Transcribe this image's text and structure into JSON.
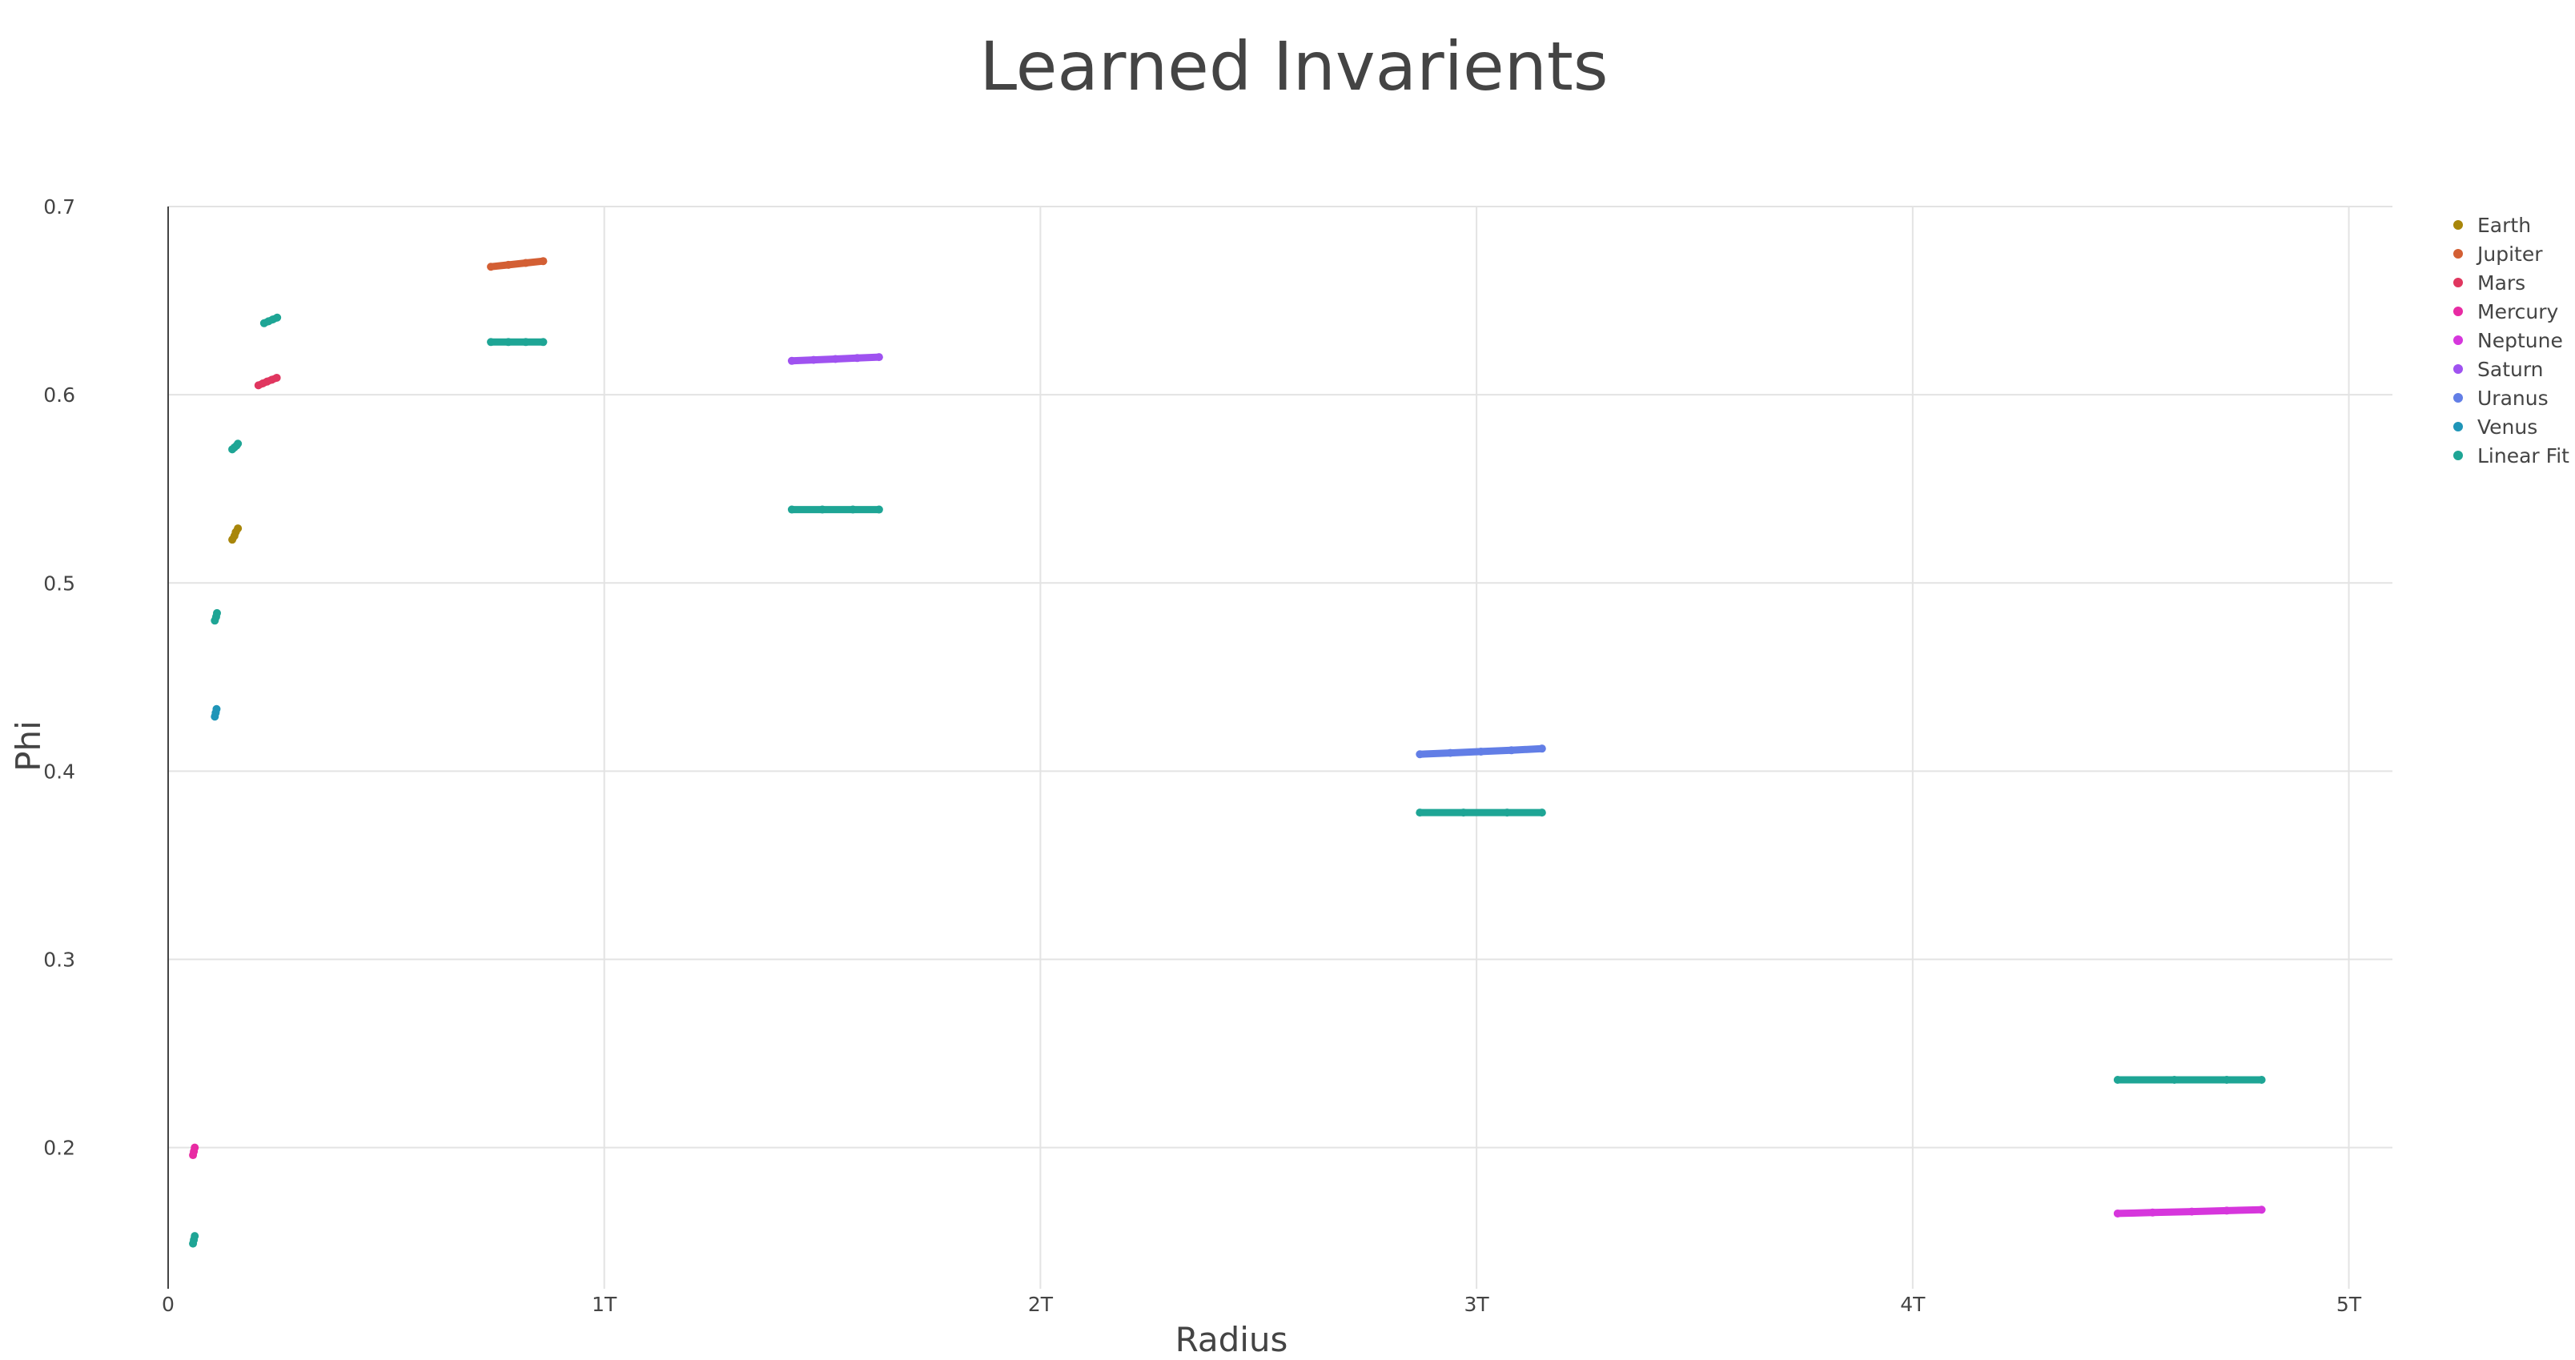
{
  "chart_data": {
    "type": "scatter",
    "title": "Learned Invarients",
    "xlabel": "Radius",
    "ylabel": "Phi",
    "xlim": [
      0,
      5100000000000.0
    ],
    "ylim": [
      0.125,
      0.7
    ],
    "x_ticks": [
      {
        "value": 0,
        "label": "0"
      },
      {
        "value": 1000000000000.0,
        "label": "1T"
      },
      {
        "value": 2000000000000.0,
        "label": "2T"
      },
      {
        "value": 3000000000000.0,
        "label": "3T"
      },
      {
        "value": 4000000000000.0,
        "label": "4T"
      },
      {
        "value": 5000000000000.0,
        "label": "5T"
      }
    ],
    "y_ticks": [
      {
        "value": 0.2,
        "label": "0.2"
      },
      {
        "value": 0.3,
        "label": "0.3"
      },
      {
        "value": 0.4,
        "label": "0.4"
      },
      {
        "value": 0.5,
        "label": "0.5"
      },
      {
        "value": 0.6,
        "label": "0.6"
      },
      {
        "value": 0.7,
        "label": "0.7"
      }
    ],
    "grid": true,
    "legend_position": "top-right",
    "series": [
      {
        "name": "Earth",
        "color": "#a8860a",
        "segments": [
          {
            "x": [
              147000000000.0,
              152000000000.0,
              155000000000.0,
              160000000000.0
            ],
            "y": [
              0.523,
              0.525,
              0.527,
              0.529
            ]
          }
        ]
      },
      {
        "name": "Jupiter",
        "color": "#d35f34",
        "segments": [
          {
            "x": [
              740000000000.0,
              780000000000.0,
              820000000000.0,
              860000000000.0
            ],
            "y": [
              0.668,
              0.669,
              0.67,
              0.671
            ]
          }
        ]
      },
      {
        "name": "Mars",
        "color": "#e0365f",
        "segments": [
          {
            "x": [
              207000000000.0,
              217000000000.0,
              227000000000.0,
              238000000000.0,
              249000000000.0
            ],
            "y": [
              0.605,
              0.606,
              0.607,
              0.608,
              0.609
            ]
          }
        ]
      },
      {
        "name": "Mercury",
        "color": "#e82ba3",
        "segments": [
          {
            "x": [
              57000000000.0,
              59000000000.0,
              61000000000.0
            ],
            "y": [
              0.196,
              0.198,
              0.2
            ]
          }
        ]
      },
      {
        "name": "Neptune",
        "color": "#d636dc",
        "segments": [
          {
            "x": [
              4470000000000.0,
              4550000000000.0,
              4640000000000.0,
              4720000000000.0,
              4800000000000.0
            ],
            "y": [
              0.165,
              0.1655,
              0.166,
              0.1665,
              0.167
            ]
          }
        ]
      },
      {
        "name": "Saturn",
        "color": "#9f52f0",
        "segments": [
          {
            "x": [
              1430000000000.0,
              1480000000000.0,
              1530000000000.0,
              1580000000000.0,
              1630000000000.0
            ],
            "y": [
              0.618,
              0.6185,
              0.619,
              0.6195,
              0.62
            ]
          }
        ]
      },
      {
        "name": "Uranus",
        "color": "#627ee6",
        "segments": [
          {
            "x": [
              2870000000000.0,
              2940000000000.0,
              3010000000000.0,
              3080000000000.0,
              3150000000000.0
            ],
            "y": [
              0.409,
              0.4097,
              0.4104,
              0.4111,
              0.412
            ]
          }
        ]
      },
      {
        "name": "Venus",
        "color": "#1f95b8",
        "segments": [
          {
            "x": [
              107000000000.0,
              109000000000.0,
              111000000000.0
            ],
            "y": [
              0.429,
              0.431,
              0.433
            ]
          }
        ]
      },
      {
        "name": "Linear Fit",
        "color": "#1ea595",
        "segments": [
          {
            "x": [
              147000000000.0,
              152000000000.0,
              157000000000.0,
              160000000000.0
            ],
            "y": [
              0.571,
              0.572,
              0.573,
              0.574
            ]
          },
          {
            "x": [
              740000000000.0,
              780000000000.0,
              820000000000.0,
              860000000000.0
            ],
            "y": [
              0.628,
              0.628,
              0.628,
              0.628
            ]
          },
          {
            "x": [
              220000000000.0,
              230000000000.0,
              240000000000.0,
              250000000000.0
            ],
            "y": [
              0.638,
              0.639,
              0.64,
              0.641
            ]
          },
          {
            "x": [
              57000000000.0,
              59000000000.0,
              61000000000.0
            ],
            "y": [
              0.149,
              0.151,
              0.153
            ]
          },
          {
            "x": [
              4470000000000.0,
              4600000000000.0,
              4720000000000.0,
              4800000000000.0
            ],
            "y": [
              0.236,
              0.236,
              0.236,
              0.236
            ]
          },
          {
            "x": [
              1430000000000.0,
              1500000000000.0,
              1570000000000.0,
              1630000000000.0
            ],
            "y": [
              0.539,
              0.539,
              0.539,
              0.539
            ]
          },
          {
            "x": [
              2870000000000.0,
              2970000000000.0,
              3070000000000.0,
              3150000000000.0
            ],
            "y": [
              0.378,
              0.378,
              0.378,
              0.378
            ]
          },
          {
            "x": [
              107000000000.0,
              110000000000.0,
              112000000000.0
            ],
            "y": [
              0.48,
              0.482,
              0.484
            ]
          }
        ]
      }
    ]
  }
}
